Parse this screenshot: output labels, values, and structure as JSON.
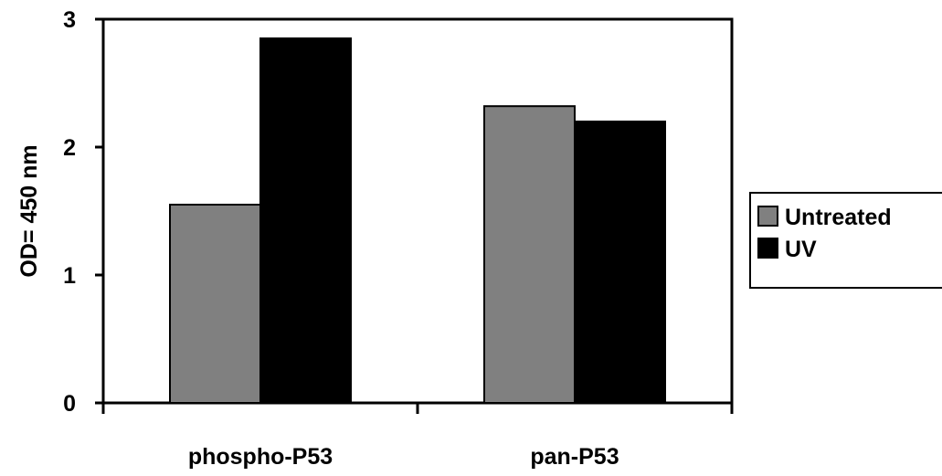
{
  "chart_data": {
    "type": "bar",
    "title": "",
    "xlabel": "",
    "ylabel": "OD= 450 nm",
    "ylim": [
      0,
      3
    ],
    "yticks": [
      0,
      1,
      2,
      3
    ],
    "categories": [
      "phospho-P53",
      "pan-P53"
    ],
    "series": [
      {
        "name": "Untreated",
        "color": "#808080",
        "values": [
          1.55,
          2.32
        ]
      },
      {
        "name": "UV",
        "color": "#000000",
        "values": [
          2.85,
          2.2
        ]
      }
    ],
    "legend_position": "right",
    "grid": false
  }
}
